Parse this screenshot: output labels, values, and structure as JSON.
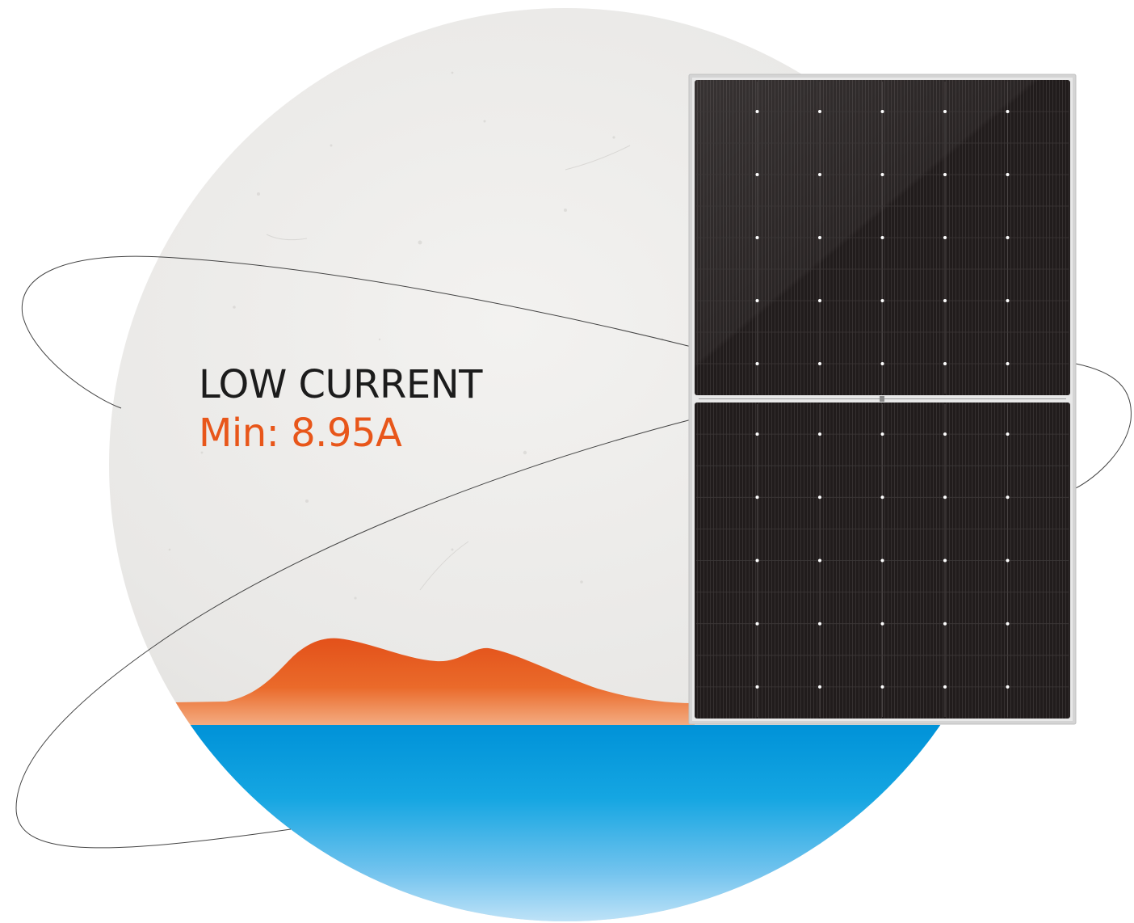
{
  "headline": {
    "title": "LOW CURRENT",
    "min_label": "Min:",
    "min_value": "8.95A"
  },
  "colors": {
    "stone_bg": "#ecebe9",
    "accent_orange": "#e8561a",
    "water_blue": "#0095db",
    "title_dark": "#1c1c1c",
    "panel_cells": "#1f1b1b",
    "panel_frame": "#d4d4d4"
  },
  "panel": {
    "columns": 6,
    "rows_per_half": 10,
    "halves": 2
  }
}
